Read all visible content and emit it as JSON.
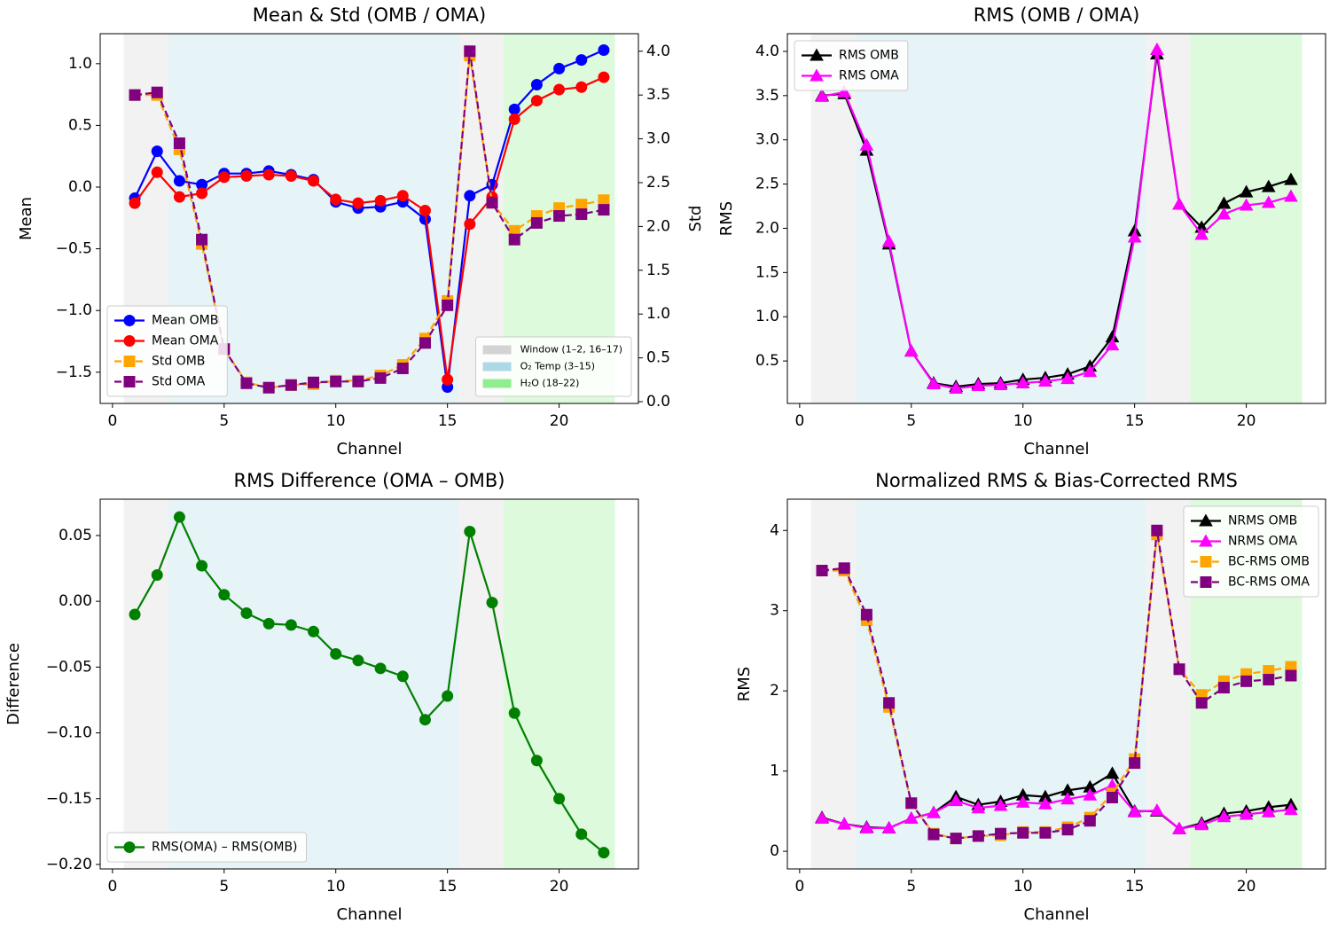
{
  "chart_data": [
    {
      "type": "line",
      "title": "Mean & Std (OMB / OMA)",
      "xlabel": "Channel",
      "ylabel": "Mean",
      "y2label": "Std",
      "x": [
        1,
        2,
        3,
        4,
        5,
        6,
        7,
        8,
        9,
        10,
        11,
        12,
        13,
        14,
        15,
        16,
        17,
        18,
        19,
        20,
        21,
        22
      ],
      "xlim": [
        -0.55,
        23.55
      ],
      "xticks": [
        0,
        5,
        10,
        15,
        20
      ],
      "ylim": [
        -1.753,
        1.243
      ],
      "yticks": [
        {
          "value": -1.5,
          "label": "−1.5"
        },
        {
          "value": -1.0,
          "label": "−1.0"
        },
        {
          "value": -0.5,
          "label": "−0.5"
        },
        {
          "value": 0,
          "label": "0.0"
        },
        0.5,
        {
          "value": 1.0,
          "label": "1.0"
        }
      ],
      "y2lim": [
        -0.02,
        4.2
      ],
      "y2ticks": [
        {
          "value": 0,
          "label": "0.0"
        },
        0.5,
        {
          "value": 1.0,
          "label": "1.0"
        },
        1.5,
        {
          "value": 2.0,
          "label": "2.0"
        },
        2.5,
        {
          "value": 3.0,
          "label": "3.0"
        },
        3.5,
        {
          "value": 4.0,
          "label": "4.0"
        }
      ],
      "legend_loc": "lower left",
      "region_legend_loc": "lower right",
      "regions": [
        {
          "name": "Window (1–2, 16–17)",
          "color": "#d3d3d3",
          "spans": [
            [
              0.5,
              2.5
            ],
            [
              15.5,
              17.5
            ]
          ]
        },
        {
          "name": "O₂ Temp (3–15)",
          "color": "#add8e6",
          "spans": [
            [
              2.5,
              15.5
            ]
          ]
        },
        {
          "name": "H₂O (18–22)",
          "color": "#90ee90",
          "spans": [
            [
              17.5,
              22.5
            ]
          ]
        }
      ],
      "series": [
        {
          "name": "Mean OMB",
          "color": "#0000ff",
          "marker": "o",
          "linestyle": "solid",
          "values": [
            -0.09,
            0.29,
            0.05,
            0.02,
            0.11,
            0.11,
            0.13,
            0.1,
            0.06,
            -0.12,
            -0.17,
            -0.16,
            -0.12,
            -0.26,
            -1.62,
            -0.07,
            0.02,
            0.63,
            0.83,
            0.96,
            1.03,
            1.11
          ]
        },
        {
          "name": "Mean OMA",
          "color": "#ff0000",
          "marker": "o",
          "linestyle": "solid",
          "values": [
            -0.13,
            0.12,
            -0.08,
            -0.05,
            0.08,
            0.09,
            0.1,
            0.09,
            0.05,
            -0.1,
            -0.13,
            -0.11,
            -0.07,
            -0.19,
            -1.56,
            -0.3,
            -0.08,
            0.55,
            0.7,
            0.79,
            0.81,
            0.89
          ]
        },
        {
          "name": "Std OMB",
          "color": "#ffa500",
          "marker": "s",
          "linestyle": "dashed",
          "axis": "y2",
          "values": [
            3.5,
            3.5,
            2.88,
            1.8,
            0.6,
            0.22,
            0.16,
            0.19,
            0.2,
            0.24,
            0.24,
            0.3,
            0.42,
            0.72,
            1.15,
            3.95,
            2.27,
            1.95,
            2.12,
            2.21,
            2.25,
            2.3
          ]
        },
        {
          "name": "Std OMA",
          "color": "#800080",
          "marker": "s",
          "linestyle": "dashed",
          "axis": "y2",
          "values": [
            3.5,
            3.53,
            2.95,
            1.85,
            0.6,
            0.21,
            0.16,
            0.19,
            0.22,
            0.23,
            0.23,
            0.27,
            0.38,
            0.67,
            1.1,
            4.0,
            2.27,
            1.85,
            2.04,
            2.12,
            2.14,
            2.19
          ]
        }
      ]
    },
    {
      "type": "line",
      "title": "RMS (OMB / OMA)",
      "xlabel": "Channel",
      "ylabel": "RMS",
      "x": [
        1,
        2,
        3,
        4,
        5,
        6,
        7,
        8,
        9,
        10,
        11,
        12,
        13,
        14,
        15,
        16,
        17,
        18,
        19,
        20,
        21,
        22
      ],
      "xlim": [
        -0.55,
        23.55
      ],
      "xticks": [
        0,
        5,
        10,
        15,
        20
      ],
      "ylim": [
        0.02,
        4.2
      ],
      "yticks": [
        0.5,
        {
          "value": 1.0,
          "label": "1.0"
        },
        1.5,
        {
          "value": 2.0,
          "label": "2.0"
        },
        2.5,
        {
          "value": 3.0,
          "label": "3.0"
        },
        3.5,
        {
          "value": 4.0,
          "label": "4.0"
        }
      ],
      "legend_loc": "upper left",
      "regions": [
        {
          "color": "#d3d3d3",
          "spans": [
            [
              0.5,
              2.5
            ],
            [
              15.5,
              17.5
            ]
          ]
        },
        {
          "color": "#add8e6",
          "spans": [
            [
              2.5,
              15.5
            ]
          ]
        },
        {
          "color": "#90ee90",
          "spans": [
            [
              17.5,
              22.5
            ]
          ]
        }
      ],
      "series": [
        {
          "name": "RMS OMB",
          "color": "#000000",
          "marker": "^",
          "linestyle": "solid",
          "values": [
            3.5,
            3.52,
            2.88,
            1.82,
            0.61,
            0.25,
            0.21,
            0.24,
            0.25,
            0.29,
            0.31,
            0.35,
            0.44,
            0.77,
            1.97,
            3.97,
            2.27,
            2.01,
            2.28,
            2.41,
            2.47,
            2.55
          ]
        },
        {
          "name": "RMS OMA",
          "color": "#ff00ff",
          "marker": "^",
          "linestyle": "solid",
          "values": [
            3.49,
            3.54,
            2.94,
            1.85,
            0.61,
            0.24,
            0.19,
            0.22,
            0.23,
            0.25,
            0.27,
            0.3,
            0.38,
            0.68,
            1.9,
            4.02,
            2.27,
            1.93,
            2.16,
            2.26,
            2.29,
            2.36
          ]
        }
      ]
    },
    {
      "type": "line",
      "title": "RMS Difference (OMA – OMB)",
      "xlabel": "Channel",
      "ylabel": "Difference",
      "x": [
        1,
        2,
        3,
        4,
        5,
        6,
        7,
        8,
        9,
        10,
        11,
        12,
        13,
        14,
        15,
        16,
        17,
        18,
        19,
        20,
        21,
        22
      ],
      "xlim": [
        -0.55,
        23.55
      ],
      "xticks": [
        0,
        5,
        10,
        15,
        20
      ],
      "ylim": [
        -0.2034,
        0.0776
      ],
      "yticks": [
        {
          "value": -0.2,
          "label": "−0.20"
        },
        {
          "value": -0.15,
          "label": "−0.15"
        },
        {
          "value": -0.1,
          "label": "−0.10"
        },
        {
          "value": -0.05,
          "label": "−0.05"
        },
        {
          "value": 0,
          "label": "0.00"
        },
        0.05
      ],
      "legend_loc": "lower left",
      "regions": [
        {
          "color": "#d3d3d3",
          "spans": [
            [
              0.5,
              2.5
            ],
            [
              15.5,
              17.5
            ]
          ]
        },
        {
          "color": "#add8e6",
          "spans": [
            [
              2.5,
              15.5
            ]
          ]
        },
        {
          "color": "#90ee90",
          "spans": [
            [
              17.5,
              22.5
            ]
          ]
        }
      ],
      "series": [
        {
          "name": "RMS(OMA) – RMS(OMB)",
          "color": "#008000",
          "marker": "o",
          "linestyle": "solid",
          "values": [
            -0.01,
            0.02,
            0.064,
            0.027,
            0.005,
            -0.009,
            -0.017,
            -0.018,
            -0.023,
            -0.04,
            -0.045,
            -0.051,
            -0.057,
            -0.09,
            -0.072,
            0.053,
            -0.001,
            -0.085,
            -0.121,
            -0.15,
            -0.177,
            -0.191
          ]
        }
      ]
    },
    {
      "type": "line",
      "title": "Normalized RMS & Bias-Corrected RMS",
      "xlabel": "Channel",
      "ylabel": "RMS",
      "x": [
        1,
        2,
        3,
        4,
        5,
        6,
        7,
        8,
        9,
        10,
        11,
        12,
        13,
        14,
        15,
        16,
        17,
        18,
        19,
        20,
        21,
        22
      ],
      "xlim": [
        -0.55,
        23.55
      ],
      "xticks": [
        0,
        5,
        10,
        15,
        20
      ],
      "ylim": [
        -0.22,
        4.39
      ],
      "yticks": [
        0,
        1,
        2,
        3,
        4
      ],
      "legend_loc": "upper right",
      "regions": [
        {
          "color": "#d3d3d3",
          "spans": [
            [
              0.5,
              2.5
            ],
            [
              15.5,
              17.5
            ]
          ]
        },
        {
          "color": "#add8e6",
          "spans": [
            [
              2.5,
              15.5
            ]
          ]
        },
        {
          "color": "#90ee90",
          "spans": [
            [
              17.5,
              22.5
            ]
          ]
        }
      ],
      "series": [
        {
          "name": "NRMS OMB",
          "color": "#000000",
          "marker": "^",
          "linestyle": "solid",
          "values": [
            0.42,
            0.34,
            0.3,
            0.29,
            0.41,
            0.48,
            0.68,
            0.58,
            0.62,
            0.7,
            0.68,
            0.76,
            0.8,
            0.97,
            0.5,
            0.5,
            0.28,
            0.35,
            0.47,
            0.5,
            0.55,
            0.58
          ]
        },
        {
          "name": "NRMS OMA",
          "color": "#ff00ff",
          "marker": "^",
          "linestyle": "solid",
          "values": [
            0.41,
            0.34,
            0.29,
            0.29,
            0.41,
            0.48,
            0.63,
            0.54,
            0.57,
            0.61,
            0.59,
            0.65,
            0.7,
            0.82,
            0.49,
            0.51,
            0.28,
            0.33,
            0.43,
            0.46,
            0.49,
            0.52
          ]
        },
        {
          "name": "BC-RMS OMB",
          "color": "#ffa500",
          "marker": "s",
          "linestyle": "dashed",
          "values": [
            3.5,
            3.5,
            2.88,
            1.8,
            0.6,
            0.22,
            0.16,
            0.19,
            0.2,
            0.24,
            0.24,
            0.3,
            0.42,
            0.72,
            1.15,
            3.95,
            2.27,
            1.95,
            2.12,
            2.21,
            2.25,
            2.3
          ]
        },
        {
          "name": "BC-RMS OMA",
          "color": "#800080",
          "marker": "s",
          "linestyle": "dashed",
          "values": [
            3.5,
            3.53,
            2.95,
            1.85,
            0.6,
            0.21,
            0.16,
            0.19,
            0.22,
            0.23,
            0.23,
            0.27,
            0.38,
            0.67,
            1.1,
            4.0,
            2.27,
            1.85,
            2.04,
            2.12,
            2.14,
            2.19
          ]
        }
      ]
    }
  ]
}
